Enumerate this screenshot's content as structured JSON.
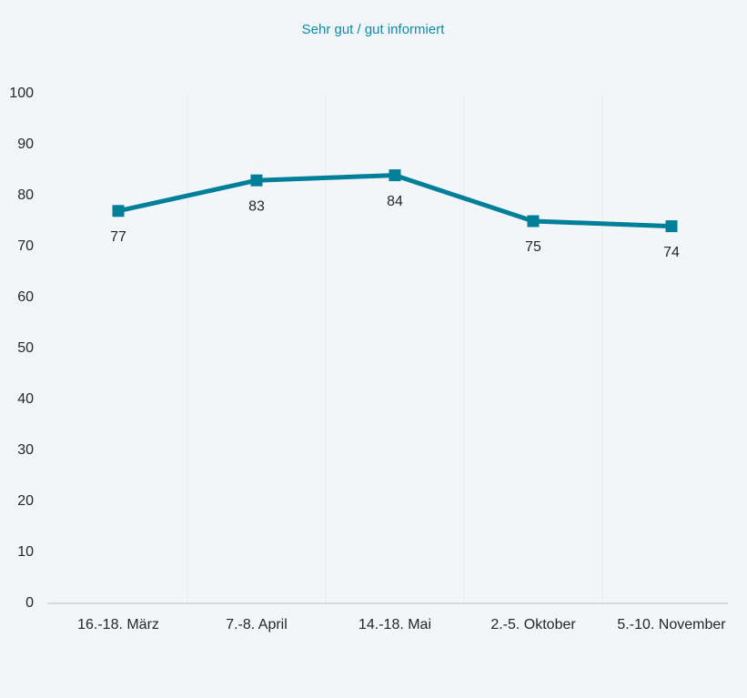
{
  "chart_data": {
    "type": "line",
    "title": "Sehr gut / gut informiert",
    "categories": [
      "16.-18. März",
      "7.-8. April",
      "14.-18. Mai",
      "2.-5. Oktober",
      "5.-10. November"
    ],
    "values": [
      77,
      83,
      84,
      75,
      74
    ],
    "color": "#007f99",
    "ylim": [
      0,
      100
    ],
    "yticks": [
      0,
      10,
      20,
      30,
      40,
      50,
      60,
      70,
      80,
      90,
      100
    ],
    "grid": true
  }
}
